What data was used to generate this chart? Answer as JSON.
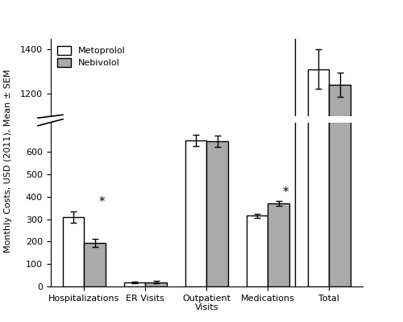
{
  "groups": [
    "Hospitalizations",
    "ER Visits",
    "Outpatient\nVisits",
    "Medications",
    "Total"
  ],
  "metoprolol_values": [
    310,
    18,
    650,
    315,
    1310
  ],
  "nebivolol_values": [
    195,
    20,
    645,
    370,
    1240
  ],
  "metoprolol_errors": [
    25,
    5,
    25,
    10,
    90
  ],
  "nebivolol_errors": [
    18,
    5,
    25,
    10,
    55
  ],
  "star_groups": [
    0,
    3
  ],
  "bar_width": 0.35,
  "ylabel": "Monthly Costs, USD (2011), Mean ± SEM",
  "legend_labels": [
    "Metoprolol",
    "Nebivolol"
  ],
  "metoprolol_color": "#ffffff",
  "nebivolol_color": "#aaaaaa",
  "edge_color": "#000000",
  "background_color": "#ffffff",
  "yticks_bottom": [
    0,
    100,
    200,
    300,
    400,
    500,
    600
  ],
  "yticks_top": [
    1200,
    1400
  ],
  "axis_fontsize": 8,
  "tick_fontsize": 8,
  "legend_fontsize": 8
}
